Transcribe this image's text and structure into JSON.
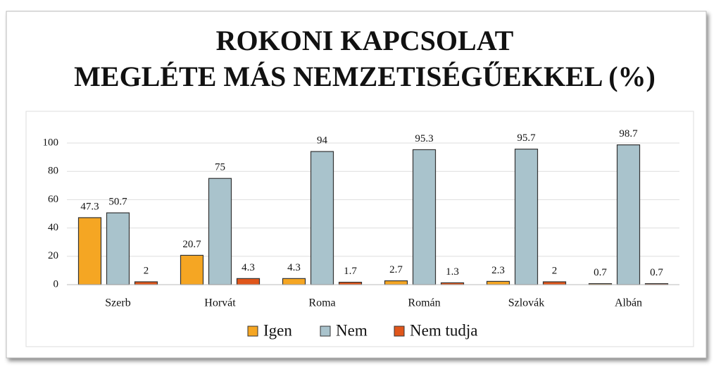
{
  "chart_data": {
    "type": "bar",
    "title": [
      "ROKONI KAPCSOLAT",
      "MEGLÉTE MÁS NEMZETISÉGŰEKKEL (%)"
    ],
    "categories": [
      "Szerb",
      "Horvát",
      "Roma",
      "Román",
      "Szlovák",
      "Albán"
    ],
    "series": [
      {
        "name": "Igen",
        "color": "#f5a623",
        "values": [
          47.3,
          20.7,
          4.3,
          2.7,
          2.3,
          0.7
        ]
      },
      {
        "name": "Nem",
        "color": "#a9c3cc",
        "values": [
          50.7,
          75,
          94,
          95.3,
          95.7,
          98.7
        ]
      },
      {
        "name": "Nem tudja",
        "color": "#e0561b",
        "values": [
          2,
          4.3,
          1.7,
          1.3,
          2,
          0.7
        ]
      }
    ],
    "ylim": [
      0,
      100
    ],
    "yticks": [
      0,
      20,
      40,
      60,
      80,
      100
    ],
    "grid": true,
    "legend": "bottom"
  }
}
